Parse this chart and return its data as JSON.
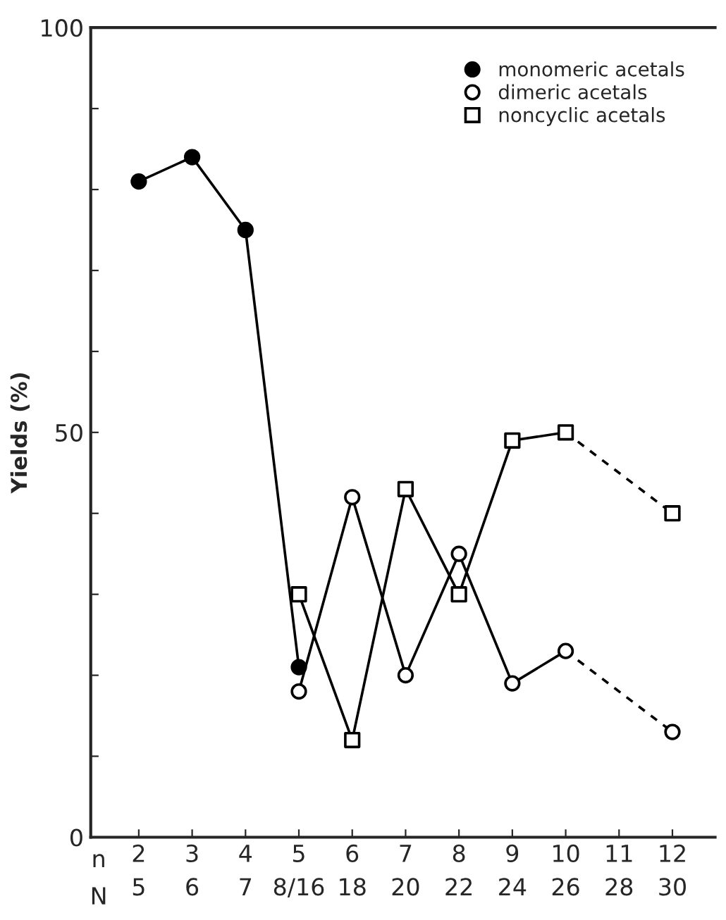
{
  "chart_data": {
    "type": "line",
    "ylabel": "Yields (%)",
    "categories": [
      "2\n5",
      "3\n6",
      "4\n7",
      "5\n8/16",
      "6\n18",
      "7\n20",
      "8\n22",
      "9\n24",
      "10\n26",
      "11\n28",
      "12\n30"
    ],
    "annotations": [
      "n",
      "N"
    ],
    "series": [
      {
        "name": "monomeric acetals",
        "color": "#000000",
        "colors": [
          "#000000",
          "#000000",
          "#000000",
          "#000000",
          null,
          null,
          null,
          null,
          null,
          null,
          null
        ],
        "marker": "circle",
        "line_style": "solid",
        "values": [
          81,
          84,
          75,
          21,
          null,
          null,
          null,
          null,
          null,
          null,
          null
        ]
      },
      {
        "name": "dimeric acetals",
        "color": "#000000",
        "colors": [
          null,
          null,
          null,
          "#ffffff",
          "#ffffff",
          "#ffffff",
          "#ffffff",
          "#ffffff",
          "#ffffff",
          null,
          null
        ],
        "marker": "circle",
        "line_style": "solid",
        "values": [
          null,
          null,
          null,
          18,
          42,
          20,
          35,
          19,
          23,
          null,
          null
        ]
      },
      {
        "name": "noncyclic acetals",
        "color": "#000000",
        "colors": [
          null,
          null,
          null,
          "#ffffff",
          "#ffffff",
          "#ffffff",
          "#ffffff",
          "#ffffff",
          "#ffffff",
          null,
          null
        ],
        "marker": "square",
        "line_style": "solid",
        "values": [
          null,
          null,
          null,
          30,
          12,
          43,
          30,
          49,
          50,
          null,
          null
        ]
      },
      {
        "color": "#000000",
        "colors": [
          null,
          null,
          null,
          null,
          null,
          null,
          null,
          null,
          null,
          null,
          "#ffffff"
        ],
        "marker": "circle",
        "line_style": "dashed",
        "values": [
          null,
          null,
          null,
          null,
          null,
          null,
          null,
          null,
          23,
          null,
          13
        ]
      },
      {
        "color": "#000000",
        "colors": [
          null,
          null,
          null,
          null,
          null,
          null,
          null,
          null,
          null,
          null,
          "#ffffff"
        ],
        "marker": "square",
        "line_style": "dashed",
        "values": [
          null,
          null,
          null,
          null,
          null,
          null,
          null,
          null,
          50,
          null,
          40
        ]
      }
    ],
    "ylim": [
      0,
      100
    ],
    "yticks": [
      0,
      {
        "value": 10,
        "label": null
      },
      {
        "value": 20,
        "label": null
      },
      {
        "value": 30,
        "label": null
      },
      {
        "value": 40,
        "label": null
      },
      50,
      {
        "value": 60,
        "label": null
      },
      {
        "value": 70,
        "label": null
      },
      {
        "value": 80,
        "label": null
      },
      {
        "value": 90,
        "label": null
      },
      100
    ],
    "grid": false,
    "legend": "top right"
  }
}
